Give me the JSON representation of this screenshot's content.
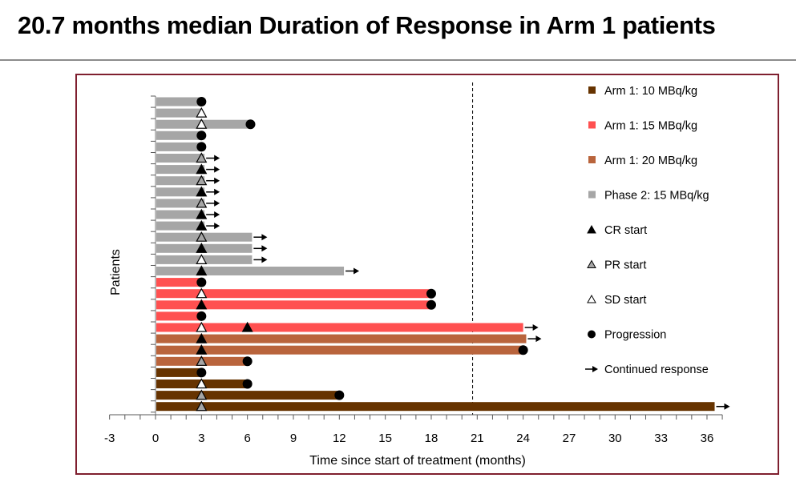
{
  "title": "20.7 months median Duration of Response in Arm 1 patients",
  "chart_data": {
    "type": "swimmer",
    "xlabel": "Time since start of treatment (months)",
    "ylabel": "Patients",
    "xlim": [
      -3,
      37
    ],
    "xticks": [
      -3,
      0,
      3,
      6,
      9,
      12,
      15,
      18,
      21,
      24,
      27,
      30,
      33,
      36
    ],
    "reference_line": {
      "x": 20.7,
      "style": "dashed"
    },
    "groups": [
      {
        "name": "Arm 1: 10 MBq/kg",
        "color": "#663300"
      },
      {
        "name": "Arm 1: 15 MBq/kg",
        "color": "#ff5050"
      },
      {
        "name": "Arm 1: 20 MBq/kg",
        "color": "#b9643c"
      },
      {
        "name": "Phase 2: 15 MBq/kg",
        "color": "#a6a6a6"
      }
    ],
    "markers": [
      {
        "name": "CR start",
        "symbol": "triangle-black"
      },
      {
        "name": "PR start",
        "symbol": "triangle-gray"
      },
      {
        "name": "SD start",
        "symbol": "triangle-white"
      },
      {
        "name": "Progression",
        "symbol": "circle"
      },
      {
        "name": "Continued response",
        "symbol": "arrow"
      }
    ],
    "patients": [
      {
        "group": 3,
        "end": 3,
        "events": [
          [
            "prog",
            3
          ]
        ]
      },
      {
        "group": 3,
        "end": 3,
        "events": [
          [
            "SD",
            3
          ]
        ]
      },
      {
        "group": 3,
        "end": 6.2,
        "events": [
          [
            "SD",
            3
          ],
          [
            "prog",
            6.2
          ]
        ]
      },
      {
        "group": 3,
        "end": 3,
        "events": [
          [
            "prog",
            3
          ]
        ]
      },
      {
        "group": 3,
        "end": 3,
        "events": [
          [
            "prog",
            3
          ]
        ]
      },
      {
        "group": 3,
        "end": 3.2,
        "events": [
          [
            "PR",
            3
          ]
        ],
        "continued": true
      },
      {
        "group": 3,
        "end": 3.2,
        "events": [
          [
            "CR",
            3
          ]
        ],
        "continued": true
      },
      {
        "group": 3,
        "end": 3.2,
        "events": [
          [
            "PR",
            3
          ]
        ],
        "continued": true
      },
      {
        "group": 3,
        "end": 3.2,
        "events": [
          [
            "CR",
            3
          ]
        ],
        "continued": true
      },
      {
        "group": 3,
        "end": 3.2,
        "events": [
          [
            "PR",
            3
          ]
        ],
        "continued": true
      },
      {
        "group": 3,
        "end": 3.2,
        "events": [
          [
            "CR",
            3
          ]
        ],
        "continued": true
      },
      {
        "group": 3,
        "end": 3.2,
        "events": [
          [
            "CR",
            3
          ]
        ],
        "continued": true
      },
      {
        "group": 3,
        "end": 6.3,
        "events": [
          [
            "PR",
            3
          ]
        ],
        "continued": true
      },
      {
        "group": 3,
        "end": 6.3,
        "events": [
          [
            "CR",
            3
          ]
        ],
        "continued": true
      },
      {
        "group": 3,
        "end": 6.3,
        "events": [
          [
            "SD",
            3
          ]
        ],
        "continued": true
      },
      {
        "group": 3,
        "end": 12.3,
        "events": [
          [
            "CR",
            3
          ]
        ],
        "continued": true
      },
      {
        "group": 1,
        "end": 3,
        "events": [
          [
            "prog",
            3
          ]
        ]
      },
      {
        "group": 1,
        "end": 18,
        "events": [
          [
            "SD",
            3
          ],
          [
            "prog",
            18
          ]
        ]
      },
      {
        "group": 1,
        "end": 18,
        "events": [
          [
            "CR",
            3
          ],
          [
            "prog",
            18
          ]
        ]
      },
      {
        "group": 1,
        "end": 3,
        "events": [
          [
            "prog",
            3
          ]
        ]
      },
      {
        "group": 1,
        "end": 24,
        "events": [
          [
            "SD",
            3
          ],
          [
            "CR",
            6
          ]
        ],
        "continued": true
      },
      {
        "group": 2,
        "end": 24.2,
        "events": [
          [
            "CR",
            3
          ]
        ],
        "continued": true
      },
      {
        "group": 2,
        "end": 24,
        "events": [
          [
            "CR",
            3
          ],
          [
            "prog",
            24
          ]
        ]
      },
      {
        "group": 2,
        "end": 6,
        "events": [
          [
            "PR",
            3
          ],
          [
            "prog",
            6
          ]
        ]
      },
      {
        "group": 0,
        "end": 3,
        "events": [
          [
            "prog",
            3
          ]
        ]
      },
      {
        "group": 0,
        "end": 6,
        "events": [
          [
            "SD",
            3
          ],
          [
            "prog",
            6
          ]
        ]
      },
      {
        "group": 0,
        "end": 12,
        "events": [
          [
            "PR",
            3
          ],
          [
            "prog",
            12
          ]
        ]
      },
      {
        "group": 0,
        "end": 36.5,
        "events": [
          [
            "PR",
            3
          ]
        ],
        "continued": true
      }
    ]
  }
}
